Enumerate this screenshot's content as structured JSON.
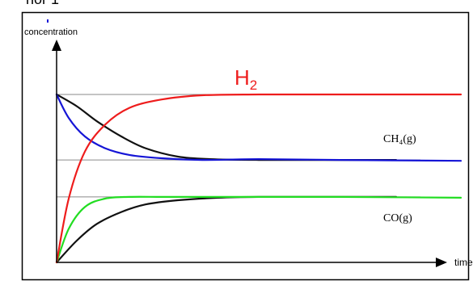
{
  "chart_data": {
    "type": "line",
    "cropped_top_text": "nor 1",
    "ylabel": "concentration",
    "xlabel": "time",
    "grid": false,
    "reference_lines": "three horizontal gray equilibrium lines",
    "series": [
      {
        "name": "H",
        "subscript": "2",
        "color": "#ee1c1c",
        "description": "rises from origin to top equilibrium level",
        "x": [
          0.0,
          0.03,
          0.07,
          0.12,
          0.18,
          0.26,
          0.36,
          0.5,
          0.7,
          1.0
        ],
        "y": [
          0.0,
          0.38,
          0.66,
          0.82,
          0.92,
          0.97,
          0.995,
          1.0,
          1.0,
          1.0
        ]
      },
      {
        "name": "CH₄(g)",
        "color": "#1515d6",
        "x": [
          0.0,
          0.03,
          0.07,
          0.12,
          0.18,
          0.26,
          0.36,
          0.5,
          0.7,
          1.0
        ],
        "y": [
          1.0,
          0.86,
          0.75,
          0.68,
          0.64,
          0.62,
          0.61,
          0.615,
          0.61,
          0.605
        ]
      },
      {
        "name": "",
        "color": "#111111",
        "x": [
          0.0,
          0.05,
          0.1,
          0.16,
          0.22,
          0.3,
          0.38,
          0.5,
          0.7,
          0.84
        ],
        "y": [
          1.0,
          0.93,
          0.84,
          0.75,
          0.68,
          0.63,
          0.615,
          0.61,
          0.61,
          0.61
        ]
      },
      {
        "name": "CO(g)",
        "color": "#22dd22",
        "x": [
          0.0,
          0.03,
          0.07,
          0.12,
          0.18,
          0.26,
          0.36,
          0.5,
          0.7,
          1.0
        ],
        "y": [
          0.0,
          0.2,
          0.33,
          0.38,
          0.39,
          0.39,
          0.39,
          0.39,
          0.39,
          0.385
        ]
      },
      {
        "name": "",
        "color": "#111111",
        "x": [
          0.0,
          0.05,
          0.1,
          0.16,
          0.22,
          0.3,
          0.4,
          0.5,
          0.7,
          0.84
        ],
        "y": [
          0.0,
          0.13,
          0.23,
          0.3,
          0.345,
          0.37,
          0.385,
          0.39,
          0.39,
          0.39
        ]
      }
    ],
    "equilibrium_levels": [
      1.0,
      0.61,
      0.39
    ]
  }
}
